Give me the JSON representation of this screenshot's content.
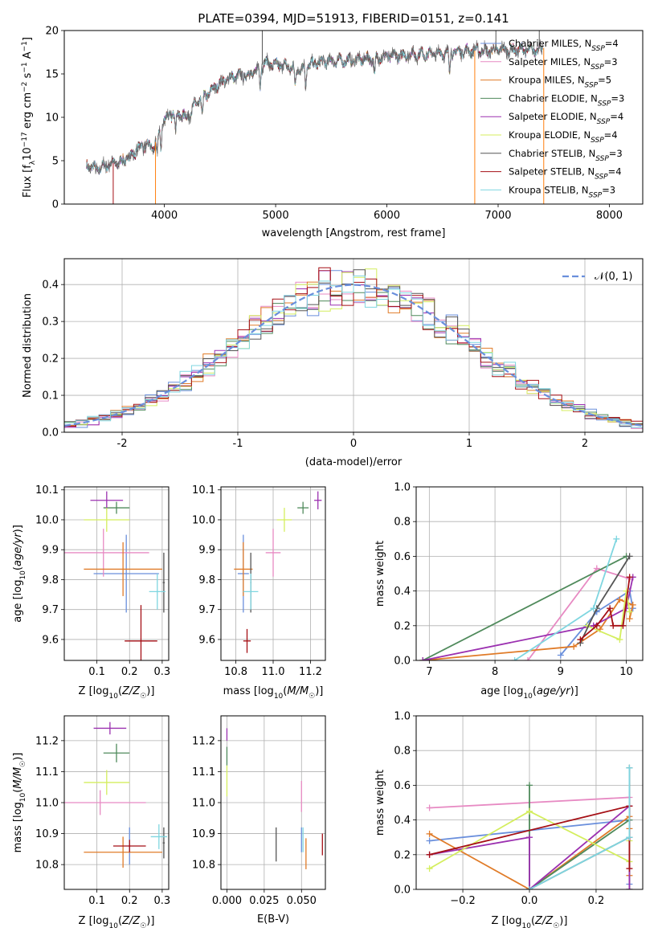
{
  "figure": {
    "title": "PLATE=0394, MJD=51913, FIBERID=0151, z=0.141"
  },
  "colors": {
    "series": [
      "#e78ac3",
      "#ff7f0e",
      "#4f8a5b",
      "#9b30b0",
      "#d4ee5e",
      "#555555",
      "#a50f15",
      "#7fd6e0",
      "#6a8fdc"
    ],
    "Chabrier MILES": "#6a8fdc",
    "Salpeter MILES": "#e78ac3",
    "Kroupa MILES": "#e07b28",
    "Chabrier ELODIE": "#4f8a5b",
    "Salpeter ELODIE": "#9b30b0",
    "Kroupa ELODIE": "#d4ee5e",
    "Chabrier STELIB": "#555555",
    "Salpeter STELIB": "#a50f15",
    "Kroupa STELIB": "#7fd6e0",
    "normal_curve": "#6a8fdc",
    "grid": "#b0b0b0"
  },
  "chart_data": [
    {
      "id": "spectrum",
      "type": "line",
      "title": "PLATE=0394, MJD=51913, FIBERID=0151, z=0.141",
      "xlabel": "wavelength [Angstrom, rest frame]",
      "ylabel": "Flux [f_λ 10^-17 erg cm^-2 s^-1 A^-1]",
      "xlim": [
        3100,
        8300
      ],
      "ylim": [
        0,
        20
      ],
      "xticks": [
        4000,
        5000,
        6000,
        7000,
        8000
      ],
      "yticks": [
        0,
        5,
        10,
        15,
        20
      ],
      "grid": false,
      "legend_position": "top-right",
      "legend": [
        {
          "name": "Chabrier MILES, N_SSP=4",
          "label": "Chabrier MILES, N",
          "sub": "SSP",
          "tail": "=4"
        },
        {
          "name": "Salpeter MILES, N_SSP=3",
          "label": "Salpeter MILES, N",
          "sub": "SSP",
          "tail": "=3"
        },
        {
          "name": "Kroupa MILES, N_SSP=5",
          "label": "Kroupa MILES, N",
          "sub": "SSP",
          "tail": "=5"
        },
        {
          "name": "Chabrier ELODIE, N_SSP=3",
          "label": "Chabrier ELODIE, N",
          "sub": "SSP",
          "tail": "=3"
        },
        {
          "name": "Salpeter ELODIE, N_SSP=4",
          "label": "Salpeter ELODIE, N",
          "sub": "SSP",
          "tail": "=4"
        },
        {
          "name": "Kroupa ELODIE, N_SSP=4",
          "label": "Kroupa ELODIE, N",
          "sub": "SSP",
          "tail": "=4"
        },
        {
          "name": "Chabrier STELIB, N_SSP=3",
          "label": "Chabrier STELIB, N",
          "sub": "SSP",
          "tail": "=3"
        },
        {
          "name": "Salpeter STELIB, N_SSP=4",
          "label": "Salpeter STELIB, N",
          "sub": "SSP",
          "tail": "=4"
        },
        {
          "name": "Kroupa STELIB, N_SSP=3",
          "label": "Kroupa STELIB, N",
          "sub": "SSP",
          "tail": "=3"
        }
      ],
      "continuum": {
        "x": [
          3300,
          3400,
          3500,
          3600,
          3700,
          3800,
          3900,
          4000,
          4100,
          4200,
          4300,
          4400,
          4500,
          4600,
          4700,
          4800,
          4900,
          5000,
          5100,
          5200,
          5300,
          5400,
          5500,
          5600,
          5700,
          5800,
          5900,
          6000,
          6100,
          6200,
          6300,
          6400,
          6500,
          6600,
          6700,
          6800,
          6900,
          7000,
          7100,
          7200,
          7300,
          7400
        ],
        "y": [
          4.5,
          4.0,
          4.6,
          4.8,
          5.6,
          6.8,
          6.5,
          9.8,
          10.6,
          10.0,
          11.8,
          12.8,
          14.0,
          14.6,
          14.8,
          15.1,
          16.3,
          16.0,
          15.9,
          15.5,
          16.0,
          16.3,
          16.5,
          16.5,
          16.6,
          16.7,
          16.9,
          17.0,
          17.1,
          17.2,
          17.3,
          17.3,
          17.4,
          17.5,
          17.6,
          17.7,
          17.6,
          17.8,
          17.7,
          17.8,
          17.7,
          18.0
        ]
      }
    },
    {
      "id": "residuals",
      "type": "histogram",
      "xlabel": "(data-model)/error",
      "ylabel": "Normed distribution",
      "xlim": [
        -2.5,
        2.5
      ],
      "ylim": [
        0,
        0.47
      ],
      "xticks": [
        -2,
        -1,
        0,
        1,
        2
      ],
      "yticks": [
        0.0,
        0.1,
        0.2,
        0.3,
        0.4
      ],
      "grid": true,
      "legend_position": "top-right",
      "legend": [
        "𝒩(0, 1)"
      ],
      "bin_width": 0.1
    },
    {
      "id": "age_vs_Z",
      "type": "scatter",
      "xlabel": "Z [log10(Z/Z☉)]",
      "ylabel": "age  [log10(age/yr)]",
      "xlim": [
        0.0,
        0.32
      ],
      "ylim": [
        9.53,
        10.11
      ],
      "xticks": [
        0.1,
        0.2,
        0.3
      ],
      "yticks": [
        9.6,
        9.7,
        9.8,
        9.9,
        10.0,
        10.1
      ],
      "grid": true,
      "points": [
        {
          "series": "Chabrier MILES",
          "x": 0.19,
          "y": 9.82,
          "xerr": 0.1,
          "yerr": 0.13
        },
        {
          "series": "Salpeter MILES",
          "x": 0.12,
          "y": 9.89,
          "xerr": 0.14,
          "yerr": 0.08
        },
        {
          "series": "Kroupa MILES",
          "x": 0.18,
          "y": 9.835,
          "xerr": 0.12,
          "yerr": 0.09
        },
        {
          "series": "Chabrier ELODIE",
          "x": 0.16,
          "y": 10.04,
          "xerr": 0.04,
          "yerr": 0.02
        },
        {
          "series": "Salpeter ELODIE",
          "x": 0.13,
          "y": 10.065,
          "xerr": 0.05,
          "yerr": 0.03
        },
        {
          "series": "Kroupa ELODIE",
          "x": 0.13,
          "y": 10.0,
          "xerr": 0.07,
          "yerr": 0.04
        },
        {
          "series": "Chabrier STELIB",
          "x": 0.305,
          "y": 9.79,
          "xerr": 0.003,
          "yerr": 0.1
        },
        {
          "series": "Salpeter STELIB",
          "x": 0.235,
          "y": 9.595,
          "xerr": 0.05,
          "yerr": 0.12
        },
        {
          "series": "Kroupa STELIB",
          "x": 0.285,
          "y": 9.76,
          "xerr": 0.025,
          "yerr": 0.06
        }
      ]
    },
    {
      "id": "age_vs_mass",
      "type": "scatter",
      "xlabel": "mass [log10(M/M☉)]",
      "ylabel": "",
      "xlim": [
        10.72,
        11.28
      ],
      "ylim": [
        9.53,
        10.11
      ],
      "xticks": [
        10.8,
        11.0,
        11.2
      ],
      "yticks": [
        9.6,
        9.7,
        9.8,
        9.9,
        10.0,
        10.1
      ],
      "grid": true,
      "points": [
        {
          "series": "Chabrier MILES",
          "x": 10.84,
          "y": 9.82,
          "xerr": 0.03,
          "yerr": 0.13
        },
        {
          "series": "Salpeter MILES",
          "x": 11.0,
          "y": 9.89,
          "xerr": 0.04,
          "yerr": 0.08
        },
        {
          "series": "Kroupa MILES",
          "x": 10.84,
          "y": 9.835,
          "xerr": 0.05,
          "yerr": 0.09
        },
        {
          "series": "Chabrier ELODIE",
          "x": 11.16,
          "y": 10.04,
          "xerr": 0.03,
          "yerr": 0.02
        },
        {
          "series": "Salpeter ELODIE",
          "x": 11.24,
          "y": 10.065,
          "xerr": 0.02,
          "yerr": 0.03
        },
        {
          "series": "Kroupa ELODIE",
          "x": 11.06,
          "y": 10.0,
          "xerr": 0.04,
          "yerr": 0.04
        },
        {
          "series": "Chabrier STELIB",
          "x": 10.88,
          "y": 9.79,
          "xerr": 0.003,
          "yerr": 0.1
        },
        {
          "series": "Salpeter STELIB",
          "x": 10.86,
          "y": 9.595,
          "xerr": 0.02,
          "yerr": 0.04
        },
        {
          "series": "Kroupa STELIB",
          "x": 10.88,
          "y": 9.76,
          "xerr": 0.04,
          "yerr": 0.06
        }
      ]
    },
    {
      "id": "weight_vs_age",
      "type": "line",
      "xlabel": "age  [log10(age/yr)]",
      "ylabel": "mass weight",
      "xlim": [
        6.8,
        10.25
      ],
      "ylim": [
        0.0,
        1.0
      ],
      "xticks": [
        7,
        8,
        9,
        10
      ],
      "yticks": [
        0.0,
        0.2,
        0.4,
        0.6,
        0.8,
        1.0
      ],
      "grid": true,
      "series": [
        {
          "name": "Chabrier MILES",
          "x": [
            9.0,
            9.55,
            10.05,
            10.1
          ],
          "y": [
            0.03,
            0.28,
            0.4,
            0.3
          ]
        },
        {
          "name": "Salpeter MILES",
          "x": [
            8.5,
            9.55,
            10.05
          ],
          "y": [
            0.0,
            0.53,
            0.47
          ]
        },
        {
          "name": "Kroupa MILES",
          "x": [
            6.9,
            9.2,
            9.6,
            9.9,
            10.1,
            10.05
          ],
          "y": [
            0.0,
            0.08,
            0.18,
            0.35,
            0.32,
            0.24
          ]
        },
        {
          "name": "Chabrier ELODIE",
          "x": [
            6.9,
            10.0
          ],
          "y": [
            0.0,
            0.6
          ]
        },
        {
          "name": "Salpeter ELODIE",
          "x": [
            6.9,
            9.5,
            10.0,
            10.1
          ],
          "y": [
            0.0,
            0.2,
            0.3,
            0.48
          ]
        },
        {
          "name": "Kroupa ELODIE",
          "x": [
            9.4,
            9.9,
            10.0,
            10.05
          ],
          "y": [
            0.2,
            0.12,
            0.4,
            0.28
          ]
        },
        {
          "name": "Chabrier STELIB",
          "x": [
            9.3,
            9.55,
            10.05
          ],
          "y": [
            0.1,
            0.3,
            0.6
          ]
        },
        {
          "name": "Salpeter STELIB",
          "x": [
            9.3,
            9.55,
            9.75,
            9.8,
            9.95,
            10.05
          ],
          "y": [
            0.12,
            0.2,
            0.3,
            0.2,
            0.2,
            0.48
          ]
        },
        {
          "name": "Kroupa STELIB",
          "x": [
            8.3,
            9.5,
            9.85
          ],
          "y": [
            0.0,
            0.3,
            0.7
          ]
        }
      ]
    },
    {
      "id": "mass_vs_Z",
      "type": "scatter",
      "xlabel": "Z [log10(Z/Z☉)]",
      "ylabel": "mass [log10(M/M☉)]",
      "xlim": [
        0.0,
        0.32
      ],
      "ylim": [
        10.72,
        11.28
      ],
      "xticks": [
        0.1,
        0.2,
        0.3
      ],
      "yticks": [
        10.8,
        10.9,
        11.0,
        11.1,
        11.2
      ],
      "grid": true,
      "points": [
        {
          "series": "Chabrier MILES",
          "x": 0.2,
          "y": 10.86,
          "xerr": 0.003,
          "yerr": 0.06
        },
        {
          "series": "Salpeter MILES",
          "x": 0.11,
          "y": 11.0,
          "xerr": 0.14,
          "yerr": 0.04
        },
        {
          "series": "Kroupa MILES",
          "x": 0.18,
          "y": 10.84,
          "xerr": 0.12,
          "yerr": 0.05
        },
        {
          "series": "Chabrier ELODIE",
          "x": 0.16,
          "y": 11.16,
          "xerr": 0.04,
          "yerr": 0.03
        },
        {
          "series": "Salpeter ELODIE",
          "x": 0.14,
          "y": 11.24,
          "xerr": 0.05,
          "yerr": 0.02
        },
        {
          "series": "Kroupa ELODIE",
          "x": 0.13,
          "y": 11.065,
          "xerr": 0.07,
          "yerr": 0.04
        },
        {
          "series": "Chabrier STELIB",
          "x": 0.305,
          "y": 10.87,
          "xerr": 0.003,
          "yerr": 0.05
        },
        {
          "series": "Salpeter STELIB",
          "x": 0.2,
          "y": 10.86,
          "xerr": 0.05,
          "yerr": 0.02
        },
        {
          "series": "Kroupa STELIB",
          "x": 0.29,
          "y": 10.89,
          "xerr": 0.025,
          "yerr": 0.04
        }
      ]
    },
    {
      "id": "mass_vs_ebv",
      "type": "scatter",
      "xlabel": "E(B-V)",
      "ylabel": "",
      "xlim": [
        -0.004,
        0.066
      ],
      "ylim": [
        10.72,
        11.28
      ],
      "xticks": [
        0.0,
        0.025,
        0.05
      ],
      "xticklabels": [
        "0.000",
        "0.025",
        "0.050"
      ],
      "yticks": [
        10.8,
        10.9,
        11.0,
        11.1,
        11.2
      ],
      "grid": true,
      "points": [
        {
          "series": "Chabrier MILES",
          "x": 0.05,
          "y": 10.88,
          "xerr": 0.0,
          "yerr": 0.04
        },
        {
          "series": "Salpeter MILES",
          "x": 0.05,
          "y": 11.02,
          "xerr": 0.0,
          "yerr": 0.05
        },
        {
          "series": "Kroupa MILES",
          "x": 0.053,
          "y": 10.835,
          "xerr": 0.0,
          "yerr": 0.05
        },
        {
          "series": "Chabrier ELODIE",
          "x": 0.0,
          "y": 11.15,
          "xerr": 0.0,
          "yerr": 0.03
        },
        {
          "series": "Salpeter ELODIE",
          "x": 0.0,
          "y": 11.22,
          "xerr": 0.0,
          "yerr": 0.02
        },
        {
          "series": "Kroupa ELODIE",
          "x": 0.0,
          "y": 11.07,
          "xerr": 0.0,
          "yerr": 0.05
        },
        {
          "series": "Chabrier STELIB",
          "x": 0.033,
          "y": 10.865,
          "xerr": 0.0,
          "yerr": 0.055
        },
        {
          "series": "Salpeter STELIB",
          "x": 0.064,
          "y": 10.865,
          "xerr": 0.0,
          "yerr": 0.035
        },
        {
          "series": "Kroupa STELIB",
          "x": 0.051,
          "y": 10.88,
          "xerr": 0.0,
          "yerr": 0.04
        }
      ]
    },
    {
      "id": "weight_vs_Z",
      "type": "line",
      "xlabel": "Z [log10(Z/Z☉)]",
      "ylabel": "mass weight",
      "xlim": [
        -0.34,
        0.34
      ],
      "ylim": [
        0.0,
        1.0
      ],
      "xticks": [
        -0.2,
        0.0,
        0.2
      ],
      "yticks": [
        0.0,
        0.2,
        0.4,
        0.6,
        0.8,
        1.0
      ],
      "grid": true,
      "series": [
        {
          "name": "Chabrier MILES",
          "x": [
            -0.3,
            0.3,
            0.3
          ],
          "y": [
            0.28,
            0.4,
            0.03
          ]
        },
        {
          "name": "Salpeter MILES",
          "x": [
            -0.3,
            0.3,
            0.3
          ],
          "y": [
            0.47,
            0.53,
            0.0
          ]
        },
        {
          "name": "Kroupa MILES",
          "x": [
            -0.3,
            0.0,
            0.3,
            0.3,
            0.3
          ],
          "y": [
            0.32,
            0.0,
            0.42,
            0.35,
            0.08
          ]
        },
        {
          "name": "Chabrier ELODIE",
          "x": [
            0.0,
            0.0,
            0.3,
            0.3
          ],
          "y": [
            0.6,
            0.0,
            0.4,
            0.0
          ]
        },
        {
          "name": "Salpeter ELODIE",
          "x": [
            -0.3,
            0.0,
            0.0,
            0.3,
            0.3
          ],
          "y": [
            0.2,
            0.3,
            0.0,
            0.48,
            0.0
          ]
        },
        {
          "name": "Kroupa ELODIE",
          "x": [
            -0.3,
            0.0,
            0.3,
            0.3
          ],
          "y": [
            0.12,
            0.45,
            0.16,
            0.28
          ]
        },
        {
          "name": "Chabrier STELIB",
          "x": [
            0.0,
            0.3,
            0.3
          ],
          "y": [
            0.0,
            0.3,
            0.7
          ]
        },
        {
          "name": "Salpeter STELIB",
          "x": [
            -0.3,
            0.3,
            0.3
          ],
          "y": [
            0.2,
            0.48,
            0.12
          ]
        },
        {
          "name": "Kroupa STELIB",
          "x": [
            0.0,
            0.3,
            0.3
          ],
          "y": [
            0.0,
            0.3,
            0.7
          ]
        }
      ]
    }
  ]
}
